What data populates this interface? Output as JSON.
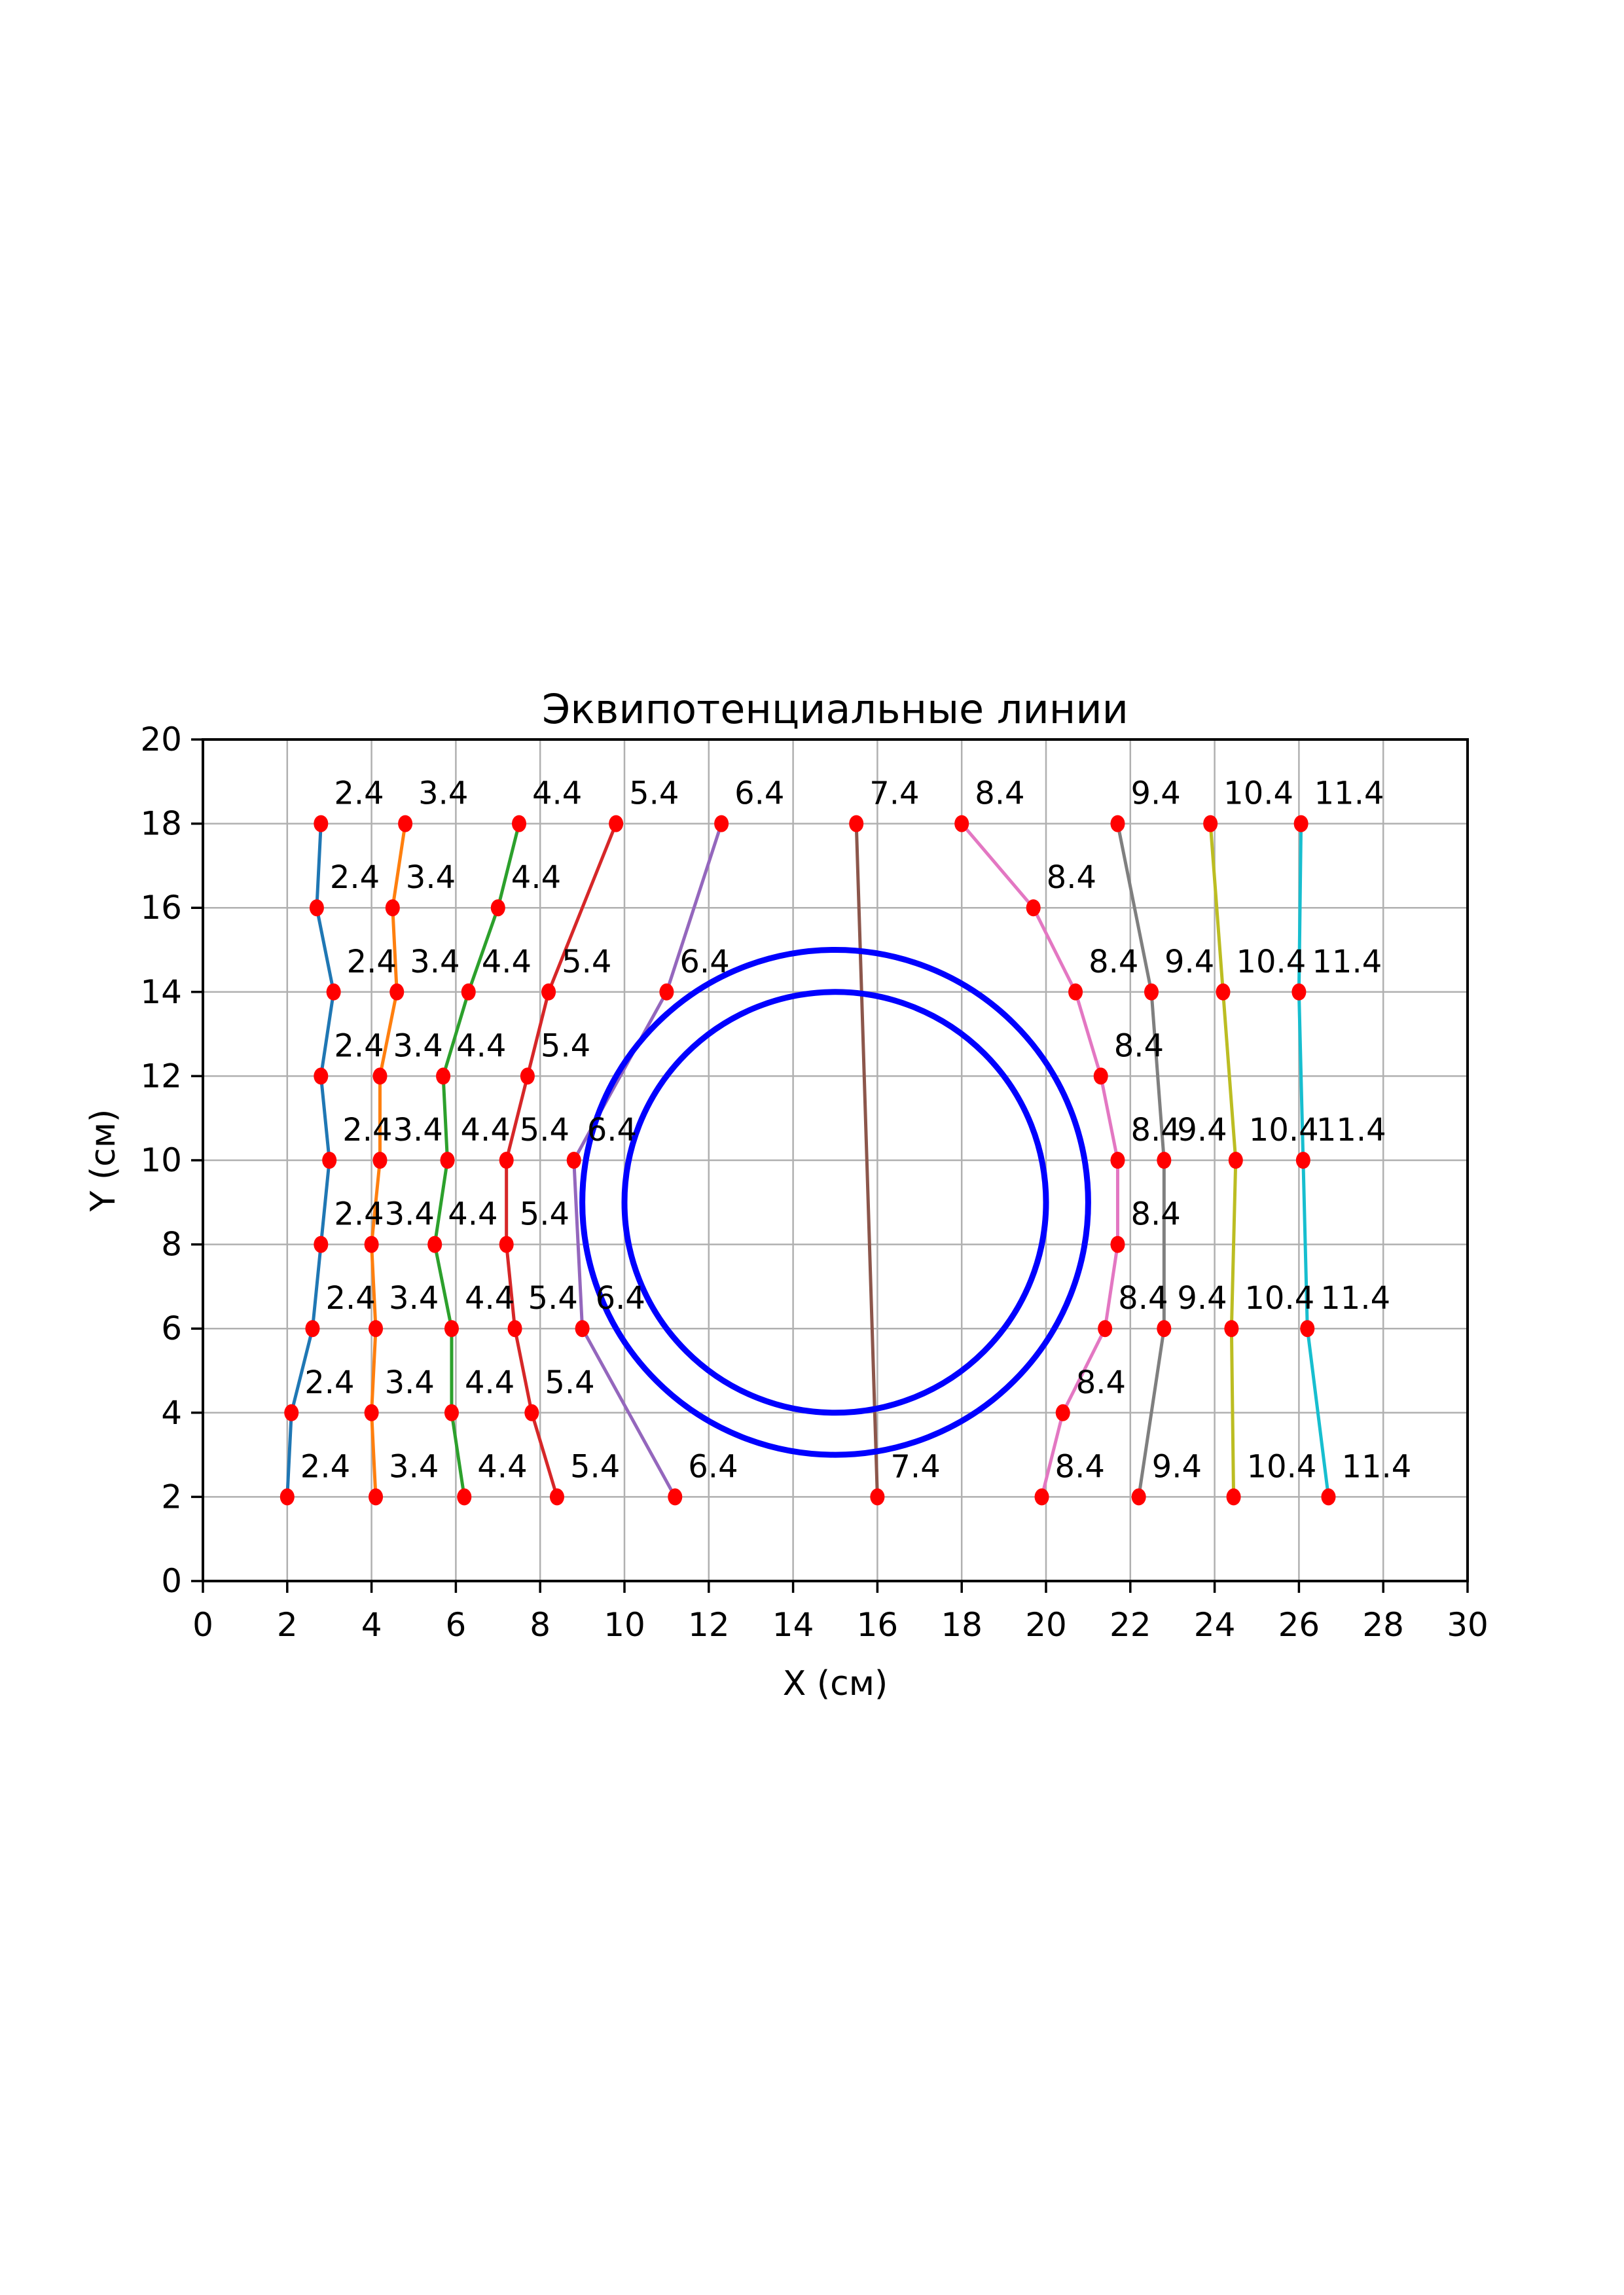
{
  "figure": {
    "background": "#ffffff",
    "frame_color": "#000000",
    "grid_color": "#b0b0b0",
    "grid": true
  },
  "chart_data": {
    "type": "line",
    "title": "Эквипотенциальные линии",
    "xlabel": "X (см)",
    "ylabel": "Y (см)",
    "xlim": [
      0,
      30
    ],
    "ylim": [
      0,
      20
    ],
    "xticks": [
      0,
      2,
      4,
      6,
      8,
      10,
      12,
      14,
      16,
      18,
      20,
      22,
      24,
      26,
      28,
      30
    ],
    "yticks": [
      0,
      2,
      4,
      6,
      8,
      10,
      12,
      14,
      16,
      18,
      20
    ],
    "legend_position": "none",
    "marker_color": "#ff0000",
    "point_label_color": "#000000",
    "series": [
      {
        "name": "2.4",
        "color": "#1f77b4",
        "points": [
          [
            2.8,
            18
          ],
          [
            2.7,
            16
          ],
          [
            3.1,
            14
          ],
          [
            2.8,
            12
          ],
          [
            3.0,
            10
          ],
          [
            2.8,
            8
          ],
          [
            2.6,
            6
          ],
          [
            2.1,
            4
          ],
          [
            2.0,
            2
          ]
        ]
      },
      {
        "name": "3.4",
        "color": "#ff7f0e",
        "points": [
          [
            4.8,
            18
          ],
          [
            4.5,
            16
          ],
          [
            4.6,
            14
          ],
          [
            4.2,
            12
          ],
          [
            4.2,
            10
          ],
          [
            4.0,
            8
          ],
          [
            4.1,
            6
          ],
          [
            4.0,
            4
          ],
          [
            4.1,
            2
          ]
        ]
      },
      {
        "name": "4.4",
        "color": "#2ca02c",
        "points": [
          [
            7.5,
            18
          ],
          [
            7.0,
            16
          ],
          [
            6.3,
            14
          ],
          [
            5.7,
            12
          ],
          [
            5.8,
            10
          ],
          [
            5.5,
            8
          ],
          [
            5.9,
            6
          ],
          [
            5.9,
            4
          ],
          [
            6.2,
            2
          ]
        ]
      },
      {
        "name": "5.4",
        "color": "#d62728",
        "points": [
          [
            9.8,
            18
          ],
          [
            8.2,
            14
          ],
          [
            7.7,
            12
          ],
          [
            7.2,
            10
          ],
          [
            7.2,
            8
          ],
          [
            7.4,
            6
          ],
          [
            7.8,
            4
          ],
          [
            8.4,
            2
          ]
        ]
      },
      {
        "name": "6.4",
        "color": "#9467bd",
        "points": [
          [
            12.3,
            18
          ],
          [
            11.0,
            14
          ],
          [
            8.8,
            10
          ],
          [
            9.0,
            6
          ],
          [
            11.2,
            2
          ]
        ]
      },
      {
        "name": "7.4",
        "color": "#8c564b",
        "points": [
          [
            15.5,
            18
          ],
          [
            16.0,
            2
          ]
        ]
      },
      {
        "name": "8.4",
        "color": "#e377c2",
        "points": [
          [
            18.0,
            18
          ],
          [
            19.7,
            16
          ],
          [
            20.7,
            14
          ],
          [
            21.3,
            12
          ],
          [
            21.7,
            10
          ],
          [
            21.7,
            8
          ],
          [
            21.4,
            6
          ],
          [
            20.4,
            4
          ],
          [
            19.9,
            2
          ]
        ]
      },
      {
        "name": "9.4",
        "color": "#7f7f7f",
        "points": [
          [
            21.7,
            18
          ],
          [
            22.5,
            14
          ],
          [
            22.8,
            10
          ],
          [
            22.8,
            6
          ],
          [
            22.2,
            2
          ]
        ]
      },
      {
        "name": "10.4",
        "color": "#bcbd22",
        "points": [
          [
            23.9,
            18
          ],
          [
            24.2,
            14
          ],
          [
            24.5,
            10
          ],
          [
            24.4,
            6
          ],
          [
            24.45,
            2
          ]
        ]
      },
      {
        "name": "11.4",
        "color": "#17becf",
        "points": [
          [
            26.05,
            18
          ],
          [
            26.0,
            14
          ],
          [
            26.1,
            10
          ],
          [
            26.2,
            6
          ],
          [
            26.7,
            2
          ]
        ]
      }
    ],
    "circles": [
      {
        "cx": 15,
        "cy": 9,
        "r": 6,
        "color": "#0000ff"
      },
      {
        "cx": 15,
        "cy": 9,
        "r": 5,
        "color": "#0000ff"
      }
    ]
  }
}
